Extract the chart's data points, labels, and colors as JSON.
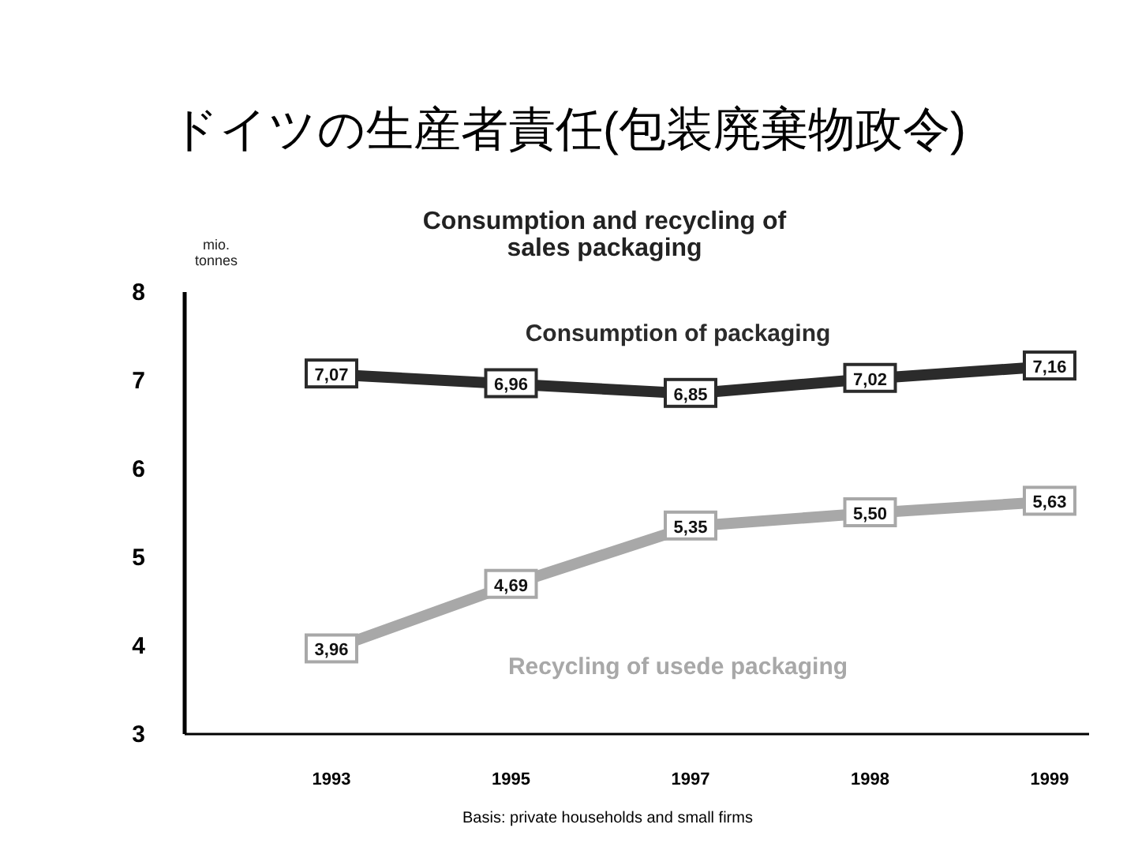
{
  "chart_data": {
    "type": "line",
    "title": "ドイツの生産者責任(包装廃棄物政令)",
    "subtitle": "Consumption and recycling of sales packaging",
    "ylabel": "mio. tonnes",
    "categories": [
      "1993",
      "1995",
      "1997",
      "1998",
      "1999"
    ],
    "series": [
      {
        "name": "Consumption of packaging",
        "color": "#2b2b2b",
        "values": [
          7.07,
          6.96,
          6.85,
          7.02,
          7.16
        ],
        "value_labels": [
          "7,07",
          "6,96",
          "6,85",
          "7,02",
          "7,16"
        ]
      },
      {
        "name": "Recycling of usede packaging",
        "color": "#a8a8a8",
        "values": [
          3.96,
          4.69,
          5.35,
          5.5,
          5.63
        ],
        "value_labels": [
          "3,96",
          "4,69",
          "5,35",
          "5,50",
          "5,63"
        ]
      }
    ],
    "ylim": [
      3,
      8
    ],
    "yticks": [
      3,
      4,
      5,
      6,
      7,
      8
    ],
    "grid": false,
    "legend": false,
    "marker": "square",
    "line_style": "solid",
    "annotations": [
      "Basis: private households and small firms"
    ]
  }
}
